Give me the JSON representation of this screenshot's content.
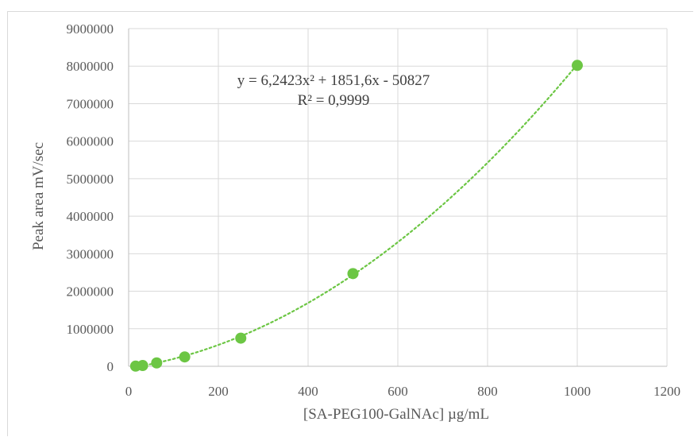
{
  "chart_data": {
    "type": "scatter",
    "title": "",
    "xlabel": "[SA-PEG100-GalNAc]  µg/mL",
    "ylabel": "Peak area mV/sec",
    "xlim": [
      0,
      1200
    ],
    "ylim": [
      0,
      9000000
    ],
    "x_ticks": [
      0,
      200,
      400,
      600,
      800,
      1000,
      1200
    ],
    "y_ticks": [
      0,
      1000000,
      2000000,
      3000000,
      4000000,
      5000000,
      6000000,
      7000000,
      8000000,
      9000000
    ],
    "x_tick_labels": [
      "0",
      "200",
      "400",
      "600",
      "800",
      "1000",
      "1200"
    ],
    "y_tick_labels": [
      "0",
      "1000000",
      "2000000",
      "3000000",
      "4000000",
      "5000000",
      "6000000",
      "7000000",
      "8000000",
      "9000000"
    ],
    "grid": true,
    "legend": "none",
    "series": [
      {
        "color": "#6cc644",
        "points": [
          {
            "x": 15.6,
            "y": 5000
          },
          {
            "x": 31.25,
            "y": 20000
          },
          {
            "x": 62.5,
            "y": 90000
          },
          {
            "x": 125,
            "y": 250000
          },
          {
            "x": 250,
            "y": 750000
          },
          {
            "x": 500,
            "y": 2470000
          },
          {
            "x": 1000,
            "y": 8020000
          }
        ]
      }
    ],
    "trendline": {
      "type": "polynomial",
      "order": 2,
      "coefficients": {
        "a": 6.2423,
        "b": 1851.6,
        "c": -50827
      },
      "x_range": [
        15.6,
        1000
      ],
      "color": "#6cc644",
      "style": "dotted"
    },
    "annotations": {
      "equation": "y = 6,2423x² + 1851,6x - 50827",
      "r_squared": "R² = 0,9999"
    }
  }
}
